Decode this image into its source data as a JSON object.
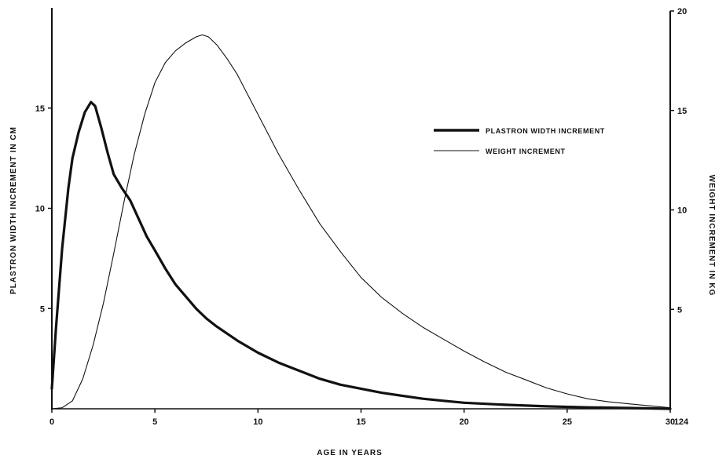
{
  "chart_data": {
    "type": "line",
    "title": "",
    "xlabel": "AGE IN YEARS",
    "ylabel_left": "PLASTRON WIDTH INCREMENT IN CM",
    "ylabel_right": "WEIGHT INCREMENT IN KG",
    "xlim": [
      0,
      30
    ],
    "ylim_left": [
      0,
      20
    ],
    "ylim_right": [
      0,
      20
    ],
    "x_ticks": [
      "0",
      "5",
      "10",
      "15",
      "20",
      "25",
      "30"
    ],
    "x_extra_tick": "124",
    "y_ticks_left": [
      "5",
      "10",
      "15"
    ],
    "y_ticks_right": [
      "5",
      "10",
      "15",
      "20"
    ],
    "grid": false,
    "legend_position": "upper-right",
    "series": [
      {
        "name": "PLASTRON WIDTH INCREMENT",
        "axis": "left",
        "style": "thick",
        "x": [
          0,
          0.2,
          0.5,
          0.8,
          1.0,
          1.3,
          1.6,
          1.9,
          2.1,
          2.4,
          2.7,
          3.0,
          3.4,
          3.8,
          4.2,
          4.6,
          5.0,
          5.5,
          6.0,
          6.5,
          7.0,
          7.5,
          8.0,
          9.0,
          10.0,
          11.0,
          12.0,
          13.0,
          14.0,
          15.0,
          16.0,
          17.0,
          18.0,
          19.0,
          20.0,
          22.0,
          24.0,
          26.0,
          28.0,
          30.0
        ],
        "y": [
          1.0,
          4.0,
          8.0,
          11.0,
          12.5,
          13.8,
          14.8,
          15.3,
          15.1,
          14.0,
          12.8,
          11.7,
          11.0,
          10.4,
          9.5,
          8.6,
          7.9,
          7.0,
          6.2,
          5.6,
          5.0,
          4.5,
          4.1,
          3.4,
          2.8,
          2.3,
          1.9,
          1.5,
          1.2,
          1.0,
          0.8,
          0.65,
          0.5,
          0.4,
          0.3,
          0.2,
          0.12,
          0.07,
          0.04,
          0.0
        ]
      },
      {
        "name": "WEIGHT INCREMENT",
        "axis": "right",
        "style": "thin",
        "x": [
          0,
          0.5,
          1.0,
          1.5,
          2.0,
          2.5,
          3.0,
          3.5,
          4.0,
          4.5,
          5.0,
          5.5,
          6.0,
          6.5,
          7.0,
          7.3,
          7.6,
          8.0,
          8.5,
          9.0,
          9.5,
          10.0,
          11.0,
          12.0,
          13.0,
          14.0,
          15.0,
          16.0,
          17.0,
          18.0,
          19.0,
          20.0,
          21.0,
          22.0,
          23.0,
          24.0,
          25.0,
          26.0,
          27.0,
          28.0,
          29.0,
          30.0
        ],
        "y": [
          0.0,
          0.05,
          0.4,
          1.5,
          3.2,
          5.3,
          7.8,
          10.4,
          12.8,
          14.8,
          16.4,
          17.4,
          18.0,
          18.4,
          18.7,
          18.8,
          18.7,
          18.3,
          17.6,
          16.8,
          15.8,
          14.8,
          12.8,
          11.0,
          9.3,
          7.9,
          6.6,
          5.6,
          4.8,
          4.1,
          3.5,
          2.9,
          2.35,
          1.85,
          1.45,
          1.05,
          0.75,
          0.5,
          0.35,
          0.25,
          0.15,
          0.05
        ]
      }
    ]
  }
}
